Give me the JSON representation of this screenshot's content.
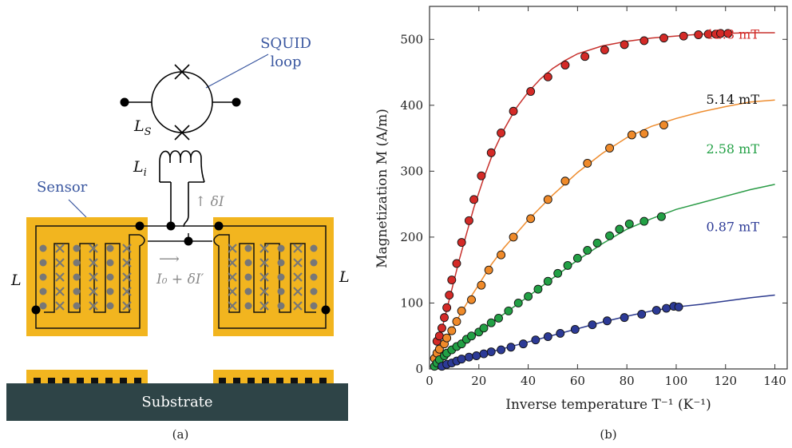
{
  "panel_a": {
    "caption": "(a)",
    "squid_label_line1": "SQUID",
    "squid_label_line2": "loop",
    "ls_main": "L",
    "ls_sub": "S",
    "li_main": "L",
    "li_sub": "i",
    "sensor_label": "Sensor",
    "delta_i": "↑ δI",
    "current_arrow": "⟶",
    "current_label": "I₀ + δI′",
    "l_left": "L",
    "l_right": "L",
    "substrate_label": "Substrate",
    "colors": {
      "gold": "#f2b51f",
      "substrate": "#2e4447",
      "blue_label": "#3a57a0",
      "gray": "#777777"
    }
  },
  "panel_b": {
    "caption": "(b)",
    "chart_data": {
      "type": "scatter",
      "xlabel": "Inverse temperature T⁻¹ (K⁻¹)",
      "ylabel": "Magnetization M (A/m)",
      "xlim": [
        0,
        145
      ],
      "ylim": [
        0,
        550
      ],
      "xticks": [
        0,
        20,
        40,
        60,
        80,
        100,
        120,
        140
      ],
      "yticks": [
        0,
        100,
        200,
        300,
        400,
        500
      ],
      "grid": false,
      "series": [
        {
          "name": "12.8 mT",
          "color": "#d42a27",
          "line_color": "#c7302c",
          "points": [
            [
              3,
              42
            ],
            [
              4,
              50
            ],
            [
              5,
              62
            ],
            [
              6,
              78
            ],
            [
              7,
              93
            ],
            [
              8,
              112
            ],
            [
              9,
              135
            ],
            [
              11,
              160
            ],
            [
              13,
              192
            ],
            [
              16,
              225
            ],
            [
              18,
              257
            ],
            [
              21,
              293
            ],
            [
              25,
              328
            ],
            [
              29,
              358
            ],
            [
              34,
              391
            ],
            [
              41,
              421
            ],
            [
              48,
              443
            ],
            [
              55,
              461
            ],
            [
              63,
              474
            ],
            [
              71,
              484
            ],
            [
              79,
              492
            ],
            [
              87,
              498
            ],
            [
              95,
              502
            ],
            [
              103,
              505
            ],
            [
              109,
              507
            ],
            [
              113,
              508
            ],
            [
              116,
              508
            ],
            [
              118,
              509
            ],
            [
              121,
              509
            ]
          ],
          "curve": [
            [
              2,
              12
            ],
            [
              4,
              45
            ],
            [
              6,
              75
            ],
            [
              8,
              105
            ],
            [
              10,
              135
            ],
            [
              12,
              165
            ],
            [
              15,
              205
            ],
            [
              18,
              245
            ],
            [
              22,
              290
            ],
            [
              26,
              330
            ],
            [
              30,
              362
            ],
            [
              35,
              395
            ],
            [
              40,
              420
            ],
            [
              45,
              440
            ],
            [
              50,
              456
            ],
            [
              55,
              468
            ],
            [
              60,
              478
            ],
            [
              70,
              490
            ],
            [
              80,
              497
            ],
            [
              90,
              502
            ],
            [
              100,
              505
            ],
            [
              110,
              508
            ],
            [
              120,
              509
            ],
            [
              130,
              510
            ],
            [
              140,
              510
            ]
          ]
        },
        {
          "name": "5.14 mT",
          "color": "#ef8a2a",
          "line_color": "#ee8c2e",
          "points": [
            [
              2,
              16
            ],
            [
              3,
              24
            ],
            [
              4,
              30
            ],
            [
              6,
              38
            ],
            [
              7,
              47
            ],
            [
              9,
              58
            ],
            [
              11,
              72
            ],
            [
              13,
              88
            ],
            [
              17,
              105
            ],
            [
              21,
              127
            ],
            [
              24,
              150
            ],
            [
              29,
              173
            ],
            [
              34,
              200
            ],
            [
              41,
              228
            ],
            [
              48,
              257
            ],
            [
              55,
              285
            ],
            [
              64,
              312
            ],
            [
              73,
              335
            ],
            [
              82,
              355
            ],
            [
              87,
              357
            ],
            [
              95,
              370
            ]
          ],
          "curve": [
            [
              2,
              10
            ],
            [
              5,
              30
            ],
            [
              8,
              52
            ],
            [
              12,
              80
            ],
            [
              16,
              105
            ],
            [
              20,
              128
            ],
            [
              25,
              158
            ],
            [
              30,
              183
            ],
            [
              40,
              226
            ],
            [
              50,
              264
            ],
            [
              60,
              298
            ],
            [
              70,
              327
            ],
            [
              80,
              351
            ],
            [
              90,
              368
            ],
            [
              100,
              380
            ],
            [
              110,
              390
            ],
            [
              120,
              398
            ],
            [
              130,
              405
            ],
            [
              140,
              408
            ]
          ]
        },
        {
          "name": "2.58 mT",
          "color": "#22a045",
          "line_color": "#2a9b46",
          "points": [
            [
              2,
              4
            ],
            [
              3,
              9
            ],
            [
              4,
              14
            ],
            [
              6,
              20
            ],
            [
              7,
              24
            ],
            [
              9,
              29
            ],
            [
              11,
              34
            ],
            [
              13,
              38
            ],
            [
              15,
              45
            ],
            [
              17,
              50
            ],
            [
              20,
              56
            ],
            [
              22,
              62
            ],
            [
              25,
              70
            ],
            [
              28,
              77
            ],
            [
              32,
              88
            ],
            [
              36,
              100
            ],
            [
              40,
              110
            ],
            [
              44,
              121
            ],
            [
              48,
              133
            ],
            [
              52,
              145
            ],
            [
              56,
              157
            ],
            [
              60,
              168
            ],
            [
              64,
              180
            ],
            [
              68,
              191
            ],
            [
              73,
              202
            ],
            [
              77,
              212
            ],
            [
              81,
              220
            ],
            [
              87,
              224
            ],
            [
              94,
              231
            ]
          ],
          "curve": [
            [
              2,
              4
            ],
            [
              10,
              30
            ],
            [
              20,
              56
            ],
            [
              30,
              83
            ],
            [
              40,
              110
            ],
            [
              50,
              138
            ],
            [
              60,
              165
            ],
            [
              70,
              190
            ],
            [
              80,
              212
            ],
            [
              90,
              228
            ],
            [
              100,
              242
            ],
            [
              110,
              252
            ],
            [
              120,
              262
            ],
            [
              130,
              272
            ],
            [
              140,
              280
            ]
          ]
        },
        {
          "name": "0.87 mT",
          "color": "#2c3a96",
          "line_color": "#2c3a8e",
          "points": [
            [
              5,
              4
            ],
            [
              7,
              7
            ],
            [
              9,
              9
            ],
            [
              11,
              12
            ],
            [
              13,
              15
            ],
            [
              16,
              18
            ],
            [
              19,
              20
            ],
            [
              22,
              23
            ],
            [
              25,
              26
            ],
            [
              29,
              29
            ],
            [
              33,
              33
            ],
            [
              38,
              38
            ],
            [
              43,
              44
            ],
            [
              48,
              49
            ],
            [
              53,
              54
            ],
            [
              59,
              60
            ],
            [
              66,
              67
            ],
            [
              72,
              73
            ],
            [
              79,
              78
            ],
            [
              86,
              83
            ],
            [
              92,
              89
            ],
            [
              96,
              92
            ],
            [
              99,
              95
            ],
            [
              101,
              94
            ]
          ],
          "curve": [
            [
              3,
              2
            ],
            [
              10,
              10
            ],
            [
              20,
              21
            ],
            [
              30,
              31
            ],
            [
              40,
              41
            ],
            [
              50,
              51
            ],
            [
              60,
              61
            ],
            [
              70,
              71
            ],
            [
              80,
              80
            ],
            [
              90,
              88
            ],
            [
              100,
              94
            ],
            [
              110,
              98
            ],
            [
              120,
              103
            ],
            [
              130,
              108
            ],
            [
              140,
              112
            ]
          ]
        }
      ]
    }
  }
}
